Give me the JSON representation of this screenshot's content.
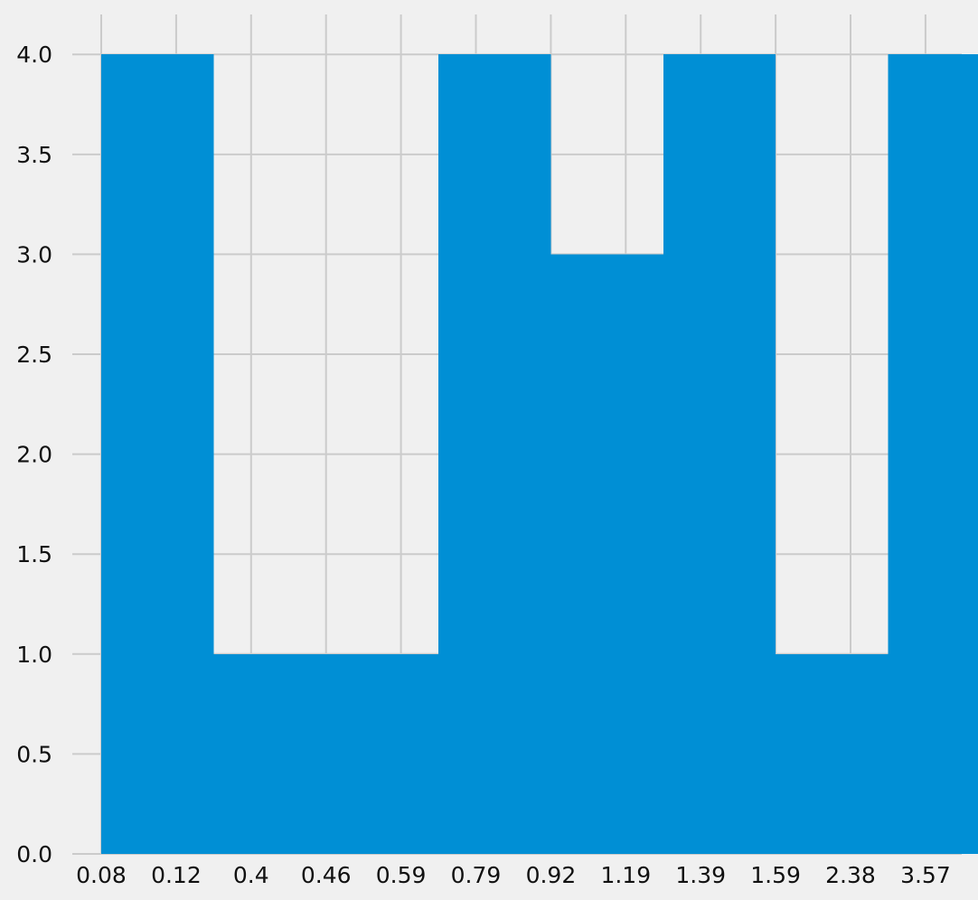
{
  "chart_data": {
    "type": "bar",
    "title": "",
    "xlabel": "",
    "ylabel": "",
    "categories": [
      "0.08",
      "0.12",
      "0.4",
      "0.46",
      "0.59",
      "0.79",
      "0.92",
      "1.19",
      "1.39",
      "1.59",
      "2.38",
      "3.57"
    ],
    "bins": [
      {
        "from_tick": 0,
        "to_tick": 1.5,
        "count": 4
      },
      {
        "from_tick": 1.5,
        "to_tick": 3,
        "count": 1
      },
      {
        "from_tick": 3,
        "to_tick": 4.5,
        "count": 1
      },
      {
        "from_tick": 4.5,
        "to_tick": 6,
        "count": 4
      },
      {
        "from_tick": 6,
        "to_tick": 7.5,
        "count": 3
      },
      {
        "from_tick": 7.5,
        "to_tick": 9,
        "count": 4
      },
      {
        "from_tick": 9,
        "to_tick": 10.5,
        "count": 1
      },
      {
        "from_tick": 10.5,
        "to_tick": 12,
        "count": 4
      }
    ],
    "yticks": [
      "0.0",
      "0.5",
      "1.0",
      "1.5",
      "2.0",
      "2.5",
      "3.0",
      "3.5",
      "4.0"
    ],
    "ylim": [
      0,
      4.2
    ],
    "grid": true,
    "colors": {
      "bar": "#008fd5",
      "background": "#f0f0f0",
      "grid": "#cbcbcb"
    }
  }
}
